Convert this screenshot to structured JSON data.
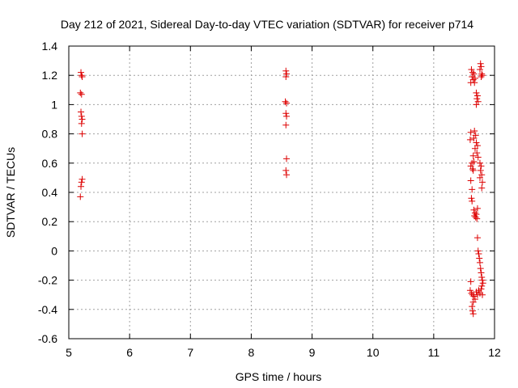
{
  "chart_data": {
    "type": "scatter",
    "title": "Day 212 of 2021, Sidereal Day-to-day VTEC variation (SDTVAR) for receiver p714",
    "xlabel": "GPS time / hours",
    "ylabel": "SDTVAR / TECUs",
    "xlim": [
      5,
      12
    ],
    "ylim": [
      -0.6,
      1.4
    ],
    "x_ticks": [
      5,
      6,
      7,
      8,
      9,
      10,
      11,
      12
    ],
    "x_tick_labels": [
      "5",
      "6",
      "7",
      "8",
      "9",
      "10",
      "11",
      "12"
    ],
    "y_ticks": [
      -0.6,
      -0.4,
      -0.2,
      0,
      0.2,
      0.4,
      0.6,
      0.8,
      1,
      1.2,
      1.4
    ],
    "y_tick_labels": [
      "-0.6",
      "-0.4",
      "-0.2",
      "0",
      "0.2",
      "0.4",
      "0.6",
      "0.8",
      "1",
      "1.2",
      "1.4"
    ],
    "grid": true,
    "marker": "plus",
    "color": "#dd0000",
    "points": [
      [
        5.2,
        1.22
      ],
      [
        5.21,
        1.2
      ],
      [
        5.22,
        1.19
      ],
      [
        5.19,
        1.08
      ],
      [
        5.21,
        1.07
      ],
      [
        5.2,
        0.95
      ],
      [
        5.21,
        0.92
      ],
      [
        5.22,
        0.9
      ],
      [
        5.21,
        0.87
      ],
      [
        5.22,
        0.8
      ],
      [
        5.22,
        0.49
      ],
      [
        5.21,
        0.47
      ],
      [
        5.2,
        0.44
      ],
      [
        5.19,
        0.37
      ],
      [
        8.57,
        1.23
      ],
      [
        8.58,
        1.21
      ],
      [
        8.57,
        1.19
      ],
      [
        8.56,
        1.02
      ],
      [
        8.58,
        1.01
      ],
      [
        8.57,
        0.94
      ],
      [
        8.58,
        0.92
      ],
      [
        8.57,
        0.86
      ],
      [
        8.58,
        0.63
      ],
      [
        8.57,
        0.55
      ],
      [
        8.58,
        0.52
      ],
      [
        11.62,
        1.24
      ],
      [
        11.64,
        1.22
      ],
      [
        11.66,
        1.21
      ],
      [
        11.63,
        1.19
      ],
      [
        11.65,
        1.17
      ],
      [
        11.67,
        1.15
      ],
      [
        11.61,
        1.15
      ],
      [
        11.68,
        1.18
      ],
      [
        11.77,
        1.28
      ],
      [
        11.78,
        1.26
      ],
      [
        11.76,
        1.24
      ],
      [
        11.79,
        1.21
      ],
      [
        11.8,
        1.2
      ],
      [
        11.78,
        1.19
      ],
      [
        11.7,
        1.08
      ],
      [
        11.72,
        1.06
      ],
      [
        11.71,
        1.04
      ],
      [
        11.73,
        1.02
      ],
      [
        11.7,
        1.0
      ],
      [
        11.61,
        0.81
      ],
      [
        11.67,
        0.82
      ],
      [
        11.69,
        0.79
      ],
      [
        11.66,
        0.77
      ],
      [
        11.6,
        0.76
      ],
      [
        11.7,
        0.74
      ],
      [
        11.72,
        0.72
      ],
      [
        11.68,
        0.7
      ],
      [
        11.71,
        0.67
      ],
      [
        11.65,
        0.65
      ],
      [
        11.73,
        0.64
      ],
      [
        11.63,
        0.6
      ],
      [
        11.66,
        0.61
      ],
      [
        11.61,
        0.58
      ],
      [
        11.64,
        0.56
      ],
      [
        11.65,
        0.55
      ],
      [
        11.76,
        0.6
      ],
      [
        11.78,
        0.58
      ],
      [
        11.77,
        0.55
      ],
      [
        11.79,
        0.52
      ],
      [
        11.76,
        0.5
      ],
      [
        11.61,
        0.48
      ],
      [
        11.63,
        0.42
      ],
      [
        11.8,
        0.47
      ],
      [
        11.79,
        0.43
      ],
      [
        11.62,
        0.36
      ],
      [
        11.63,
        0.34
      ],
      [
        11.66,
        0.28
      ],
      [
        11.68,
        0.26
      ],
      [
        11.7,
        0.25
      ],
      [
        11.67,
        0.24
      ],
      [
        11.69,
        0.23
      ],
      [
        11.71,
        0.22
      ],
      [
        11.72,
        0.29
      ],
      [
        11.72,
        0.09
      ],
      [
        11.73,
        0.0
      ],
      [
        11.74,
        -0.02
      ],
      [
        11.75,
        -0.05
      ],
      [
        11.76,
        -0.08
      ],
      [
        11.77,
        -0.12
      ],
      [
        11.78,
        -0.15
      ],
      [
        11.61,
        -0.21
      ],
      [
        11.79,
        -0.18
      ],
      [
        11.8,
        -0.2
      ],
      [
        11.81,
        -0.22
      ],
      [
        11.79,
        -0.24
      ],
      [
        11.78,
        -0.26
      ],
      [
        11.6,
        -0.27
      ],
      [
        11.62,
        -0.29
      ],
      [
        11.64,
        -0.3
      ],
      [
        11.66,
        -0.31
      ],
      [
        11.68,
        -0.33
      ],
      [
        11.65,
        -0.35
      ],
      [
        11.7,
        -0.28
      ],
      [
        11.72,
        -0.3
      ],
      [
        11.74,
        -0.27
      ],
      [
        11.76,
        -0.29
      ],
      [
        11.8,
        -0.3
      ],
      [
        11.63,
        -0.38
      ],
      [
        11.64,
        -0.41
      ],
      [
        11.65,
        -0.43
      ]
    ]
  }
}
